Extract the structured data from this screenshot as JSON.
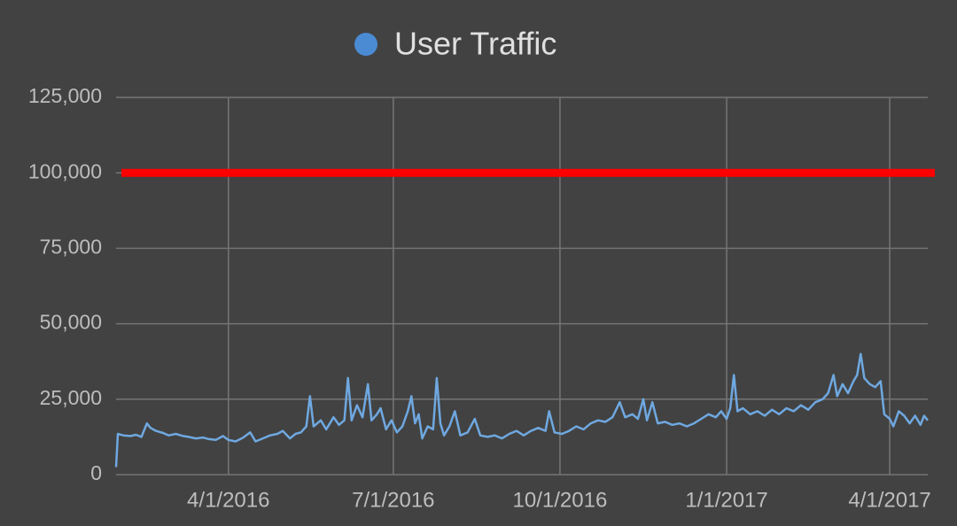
{
  "chart_data": {
    "type": "line",
    "grid": true,
    "background": "#424242",
    "xlim": [
      "1/30/2016",
      "4/22/2017"
    ],
    "xticks": [
      "4/1/2016",
      "7/1/2016",
      "10/1/2016",
      "1/1/2017",
      "4/1/2017"
    ],
    "ylim": [
      0,
      125000
    ],
    "yticks": [
      0,
      {
        "value": 25000,
        "label": "25,000"
      },
      {
        "value": 50000,
        "label": "50,000"
      },
      {
        "value": 75000,
        "label": "75,000"
      },
      {
        "value": 100000,
        "label": "100,000"
      },
      {
        "value": 125000,
        "label": "125,000"
      }
    ],
    "threshold": {
      "value": 100000,
      "color": "#ff0000"
    },
    "x": [
      "1/30/2016",
      "1/31/2016",
      "2/3/2016",
      "2/7/2016",
      "2/10/2016",
      "2/13/2016",
      "2/16/2016",
      "2/18/2016",
      "2/21/2016",
      "2/25/2016",
      "2/28/2016",
      "3/3/2016",
      "3/7/2016",
      "3/10/2016",
      "3/14/2016",
      "3/18/2016",
      "3/21/2016",
      "3/25/2016",
      "3/29/2016",
      "4/1/2016",
      "4/5/2016",
      "4/9/2016",
      "4/13/2016",
      "4/16/2016",
      "4/20/2016",
      "4/24/2016",
      "4/28/2016",
      "5/1/2016",
      "5/5/2016",
      "5/8/2016",
      "5/11/2016",
      "5/14/2016",
      "5/16/2016",
      "5/18/2016",
      "5/22/2016",
      "5/25/2016",
      "5/29/2016",
      "6/1/2016",
      "6/4/2016",
      "6/6/2016",
      "6/8/2016",
      "6/11/2016",
      "6/14/2016",
      "6/17/2016",
      "6/19/2016",
      "6/22/2016",
      "6/24/2016",
      "6/27/2016",
      "6/30/2016",
      "7/3/2016",
      "7/6/2016",
      "7/9/2016",
      "7/11/2016",
      "7/13/2016",
      "7/15/2016",
      "7/17/2016",
      "7/20/2016",
      "7/23/2016",
      "7/25/2016",
      "7/27/2016",
      "7/29/2016",
      "8/1/2016",
      "8/4/2016",
      "8/7/2016",
      "8/11/2016",
      "8/15/2016",
      "8/18/2016",
      "8/22/2016",
      "8/26/2016",
      "8/30/2016",
      "9/3/2016",
      "9/7/2016",
      "9/11/2016",
      "9/15/2016",
      "9/19/2016",
      "9/23/2016",
      "9/25/2016",
      "9/28/2016",
      "10/2/2016",
      "10/6/2016",
      "10/10/2016",
      "10/14/2016",
      "10/18/2016",
      "10/22/2016",
      "10/26/2016",
      "10/30/2016",
      "11/3/2016",
      "11/6/2016",
      "11/10/2016",
      "11/13/2016",
      "11/16/2016",
      "11/18/2016",
      "11/21/2016",
      "11/24/2016",
      "11/28/2016",
      "12/2/2016",
      "12/6/2016",
      "12/10/2016",
      "12/14/2016",
      "12/18/2016",
      "12/22/2016",
      "12/26/2016",
      "12/29/2016",
      "1/1/2017",
      "1/3/2017",
      "1/5/2017",
      "1/7/2017",
      "1/10/2017",
      "1/14/2017",
      "1/18/2017",
      "1/22/2017",
      "1/26/2017",
      "1/30/2017",
      "2/3/2017",
      "2/7/2017",
      "2/11/2017",
      "2/15/2017",
      "2/19/2017",
      "2/23/2017",
      "2/26/2017",
      "3/1/2017",
      "3/3/2017",
      "3/6/2017",
      "3/9/2017",
      "3/12/2017",
      "3/14/2017",
      "3/16/2017",
      "3/18/2017",
      "3/21/2017",
      "3/24/2017",
      "3/27/2017",
      "3/29/2017",
      "4/1/2017",
      "4/3/2017",
      "4/6/2017",
      "4/9/2017",
      "4/12/2017",
      "4/15/2017",
      "4/18/2017",
      "4/20/2017",
      "4/22/2017"
    ],
    "series": [
      {
        "name": "User Traffic",
        "color": "#6fa8e0",
        "legend_color": "#4a8bd4",
        "values": [
          2500,
          13500,
          13000,
          12800,
          13200,
          12500,
          17000,
          15500,
          14500,
          13800,
          13000,
          13500,
          12800,
          12500,
          12000,
          12300,
          11800,
          11500,
          12800,
          11500,
          11000,
          12200,
          14000,
          11000,
          12000,
          13000,
          13500,
          14500,
          12000,
          13500,
          14000,
          16000,
          26000,
          16000,
          18000,
          15000,
          19000,
          16500,
          18000,
          32000,
          18000,
          23000,
          19000,
          30000,
          18000,
          20000,
          22000,
          15000,
          18000,
          14000,
          16000,
          21000,
          26000,
          17000,
          20000,
          12000,
          16000,
          15000,
          32000,
          17000,
          13000,
          16000,
          21000,
          13000,
          14000,
          18500,
          13000,
          12500,
          13000,
          12000,
          13500,
          14500,
          13000,
          14500,
          15500,
          14500,
          21000,
          14000,
          13500,
          14500,
          16000,
          15000,
          17000,
          18000,
          17500,
          19000,
          24000,
          19000,
          20000,
          18500,
          25000,
          18000,
          24000,
          17000,
          17500,
          16500,
          17000,
          16000,
          17000,
          18500,
          20000,
          19000,
          21000,
          18500,
          22000,
          33000,
          21000,
          22000,
          20000,
          21000,
          19500,
          21500,
          20000,
          22000,
          21000,
          23000,
          21500,
          24000,
          25000,
          27000,
          33000,
          26000,
          30000,
          27000,
          31000,
          33000,
          40000,
          32000,
          30000,
          29000,
          31000,
          20000,
          18500,
          16000,
          21000,
          19500,
          17000,
          19500,
          16500,
          19500,
          18000
        ]
      }
    ]
  }
}
